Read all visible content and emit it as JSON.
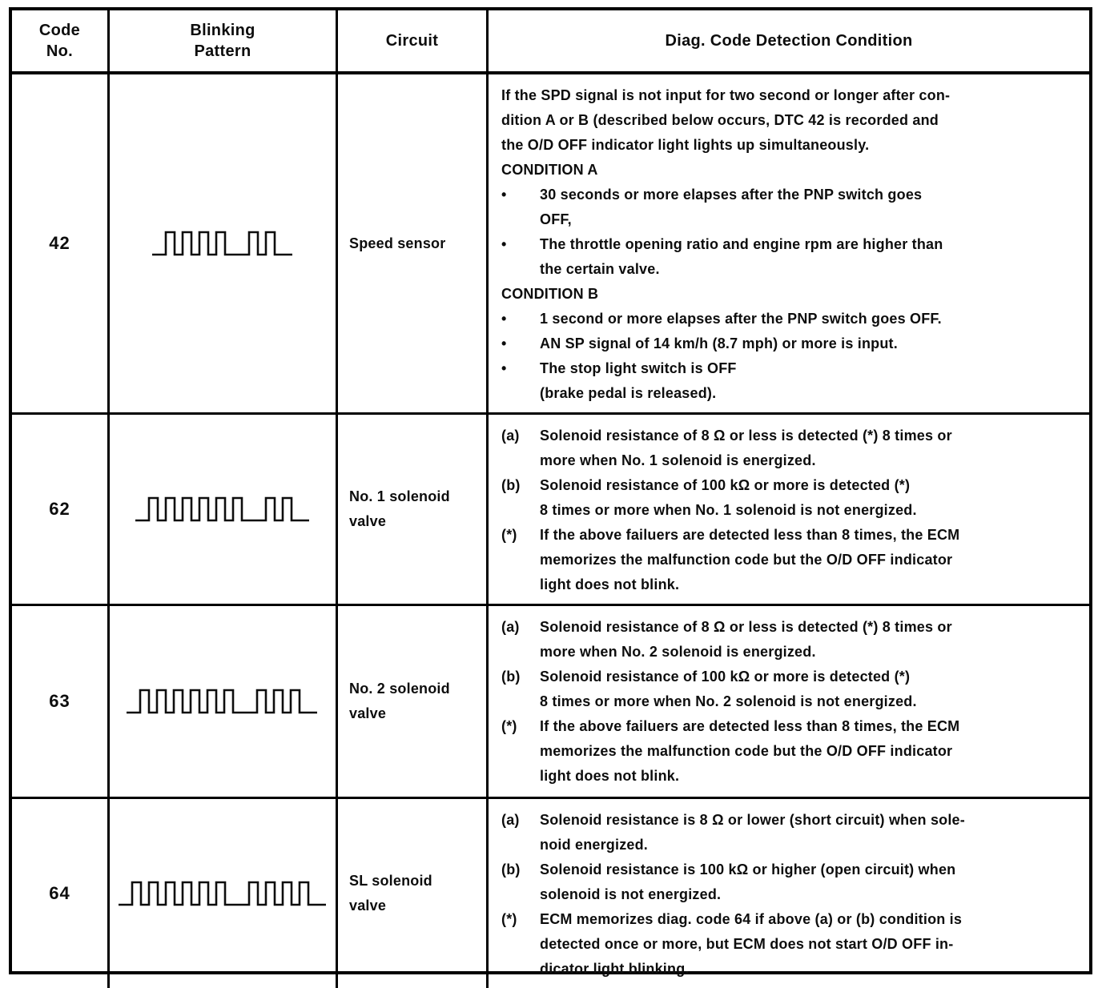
{
  "colors": {
    "ink": "#0d0d0d",
    "paper": "#ffffff"
  },
  "table": {
    "headers": {
      "code": "Code\nNo.",
      "pattern": "Blinking\nPattern",
      "circuit": "Circuit",
      "condition": "Diag. Code Detection Condition"
    },
    "rows": [
      {
        "code": "42",
        "pattern": {
          "name": "blink-pattern-4-2",
          "groups": [
            4,
            2
          ]
        },
        "circuit": "Speed sensor",
        "conditions": [
          {
            "marker": "",
            "text": "If the SPD signal is not input for two second or longer after con-\ndition A or B (described below occurs, DTC 42 is recorded and\nthe O/D OFF indicator light lights up simultaneously."
          },
          {
            "marker": "",
            "text": "CONDITION A"
          },
          {
            "marker": "•",
            "text": "30 seconds or more elapses after the PNP switch goes\nOFF,"
          },
          {
            "marker": "•",
            "text": "The throttle opening ratio and engine rpm are higher than\nthe certain valve."
          },
          {
            "marker": "",
            "text": "CONDITION B"
          },
          {
            "marker": "•",
            "text": "1 second or more elapses after the PNP switch goes OFF."
          },
          {
            "marker": "•",
            "text": "AN SP signal of 14 km/h (8.7 mph) or more is input."
          },
          {
            "marker": "•",
            "text": "The stop light switch is OFF\n(brake pedal is released)."
          }
        ]
      },
      {
        "code": "62",
        "pattern": {
          "name": "blink-pattern-6-2",
          "groups": [
            6,
            2
          ]
        },
        "circuit": "No. 1 solenoid\nvalve",
        "conditions": [
          {
            "marker": "(a)",
            "text": "Solenoid resistance of 8 Ω or less is detected (*) 8 times or\nmore when No. 1 solenoid is energized."
          },
          {
            "marker": "(b)",
            "text": "Solenoid resistance of 100 kΩ or more is detected (*)\n8 times or more when No. 1 solenoid is not energized."
          },
          {
            "marker": "(*)",
            "text": "If the above failuers are detected less than 8 times, the ECM\nmemorizes the malfunction code but the O/D OFF indicator\nlight does not blink."
          }
        ]
      },
      {
        "code": "63",
        "pattern": {
          "name": "blink-pattern-6-3",
          "groups": [
            6,
            3
          ]
        },
        "circuit": "No. 2 solenoid\nvalve",
        "conditions": [
          {
            "marker": "(a)",
            "text": "Solenoid resistance of 8 Ω or less is detected (*) 8 times or\nmore when No. 2 solenoid is energized."
          },
          {
            "marker": "(b)",
            "text": "Solenoid resistance of 100 kΩ or more is detected (*)\n8 times or more when No. 2 solenoid is not energized."
          },
          {
            "marker": "(*)",
            "text": "If the above failuers are detected less than 8 times, the ECM\nmemorizes the malfunction code but the O/D OFF indicator\nlight does not blink."
          }
        ]
      },
      {
        "code": "64",
        "pattern": {
          "name": "blink-pattern-6-4",
          "groups": [
            6,
            4
          ]
        },
        "circuit": "SL solenoid\nvalve",
        "conditions": [
          {
            "marker": "(a)",
            "text": "Solenoid resistance is 8 Ω or lower (short circuit) when sole-\nnoid energized."
          },
          {
            "marker": "(b)",
            "text": "Solenoid resistance is 100 kΩ or higher (open circuit) when\nsolenoid is not energized."
          },
          {
            "marker": "(*)",
            "text": "ECM memorizes diag. code 64 if above (a) or (b) condition is\ndetected once or more, but ECM does not start O/D OFF in-\ndicator light blinking."
          }
        ]
      }
    ]
  }
}
